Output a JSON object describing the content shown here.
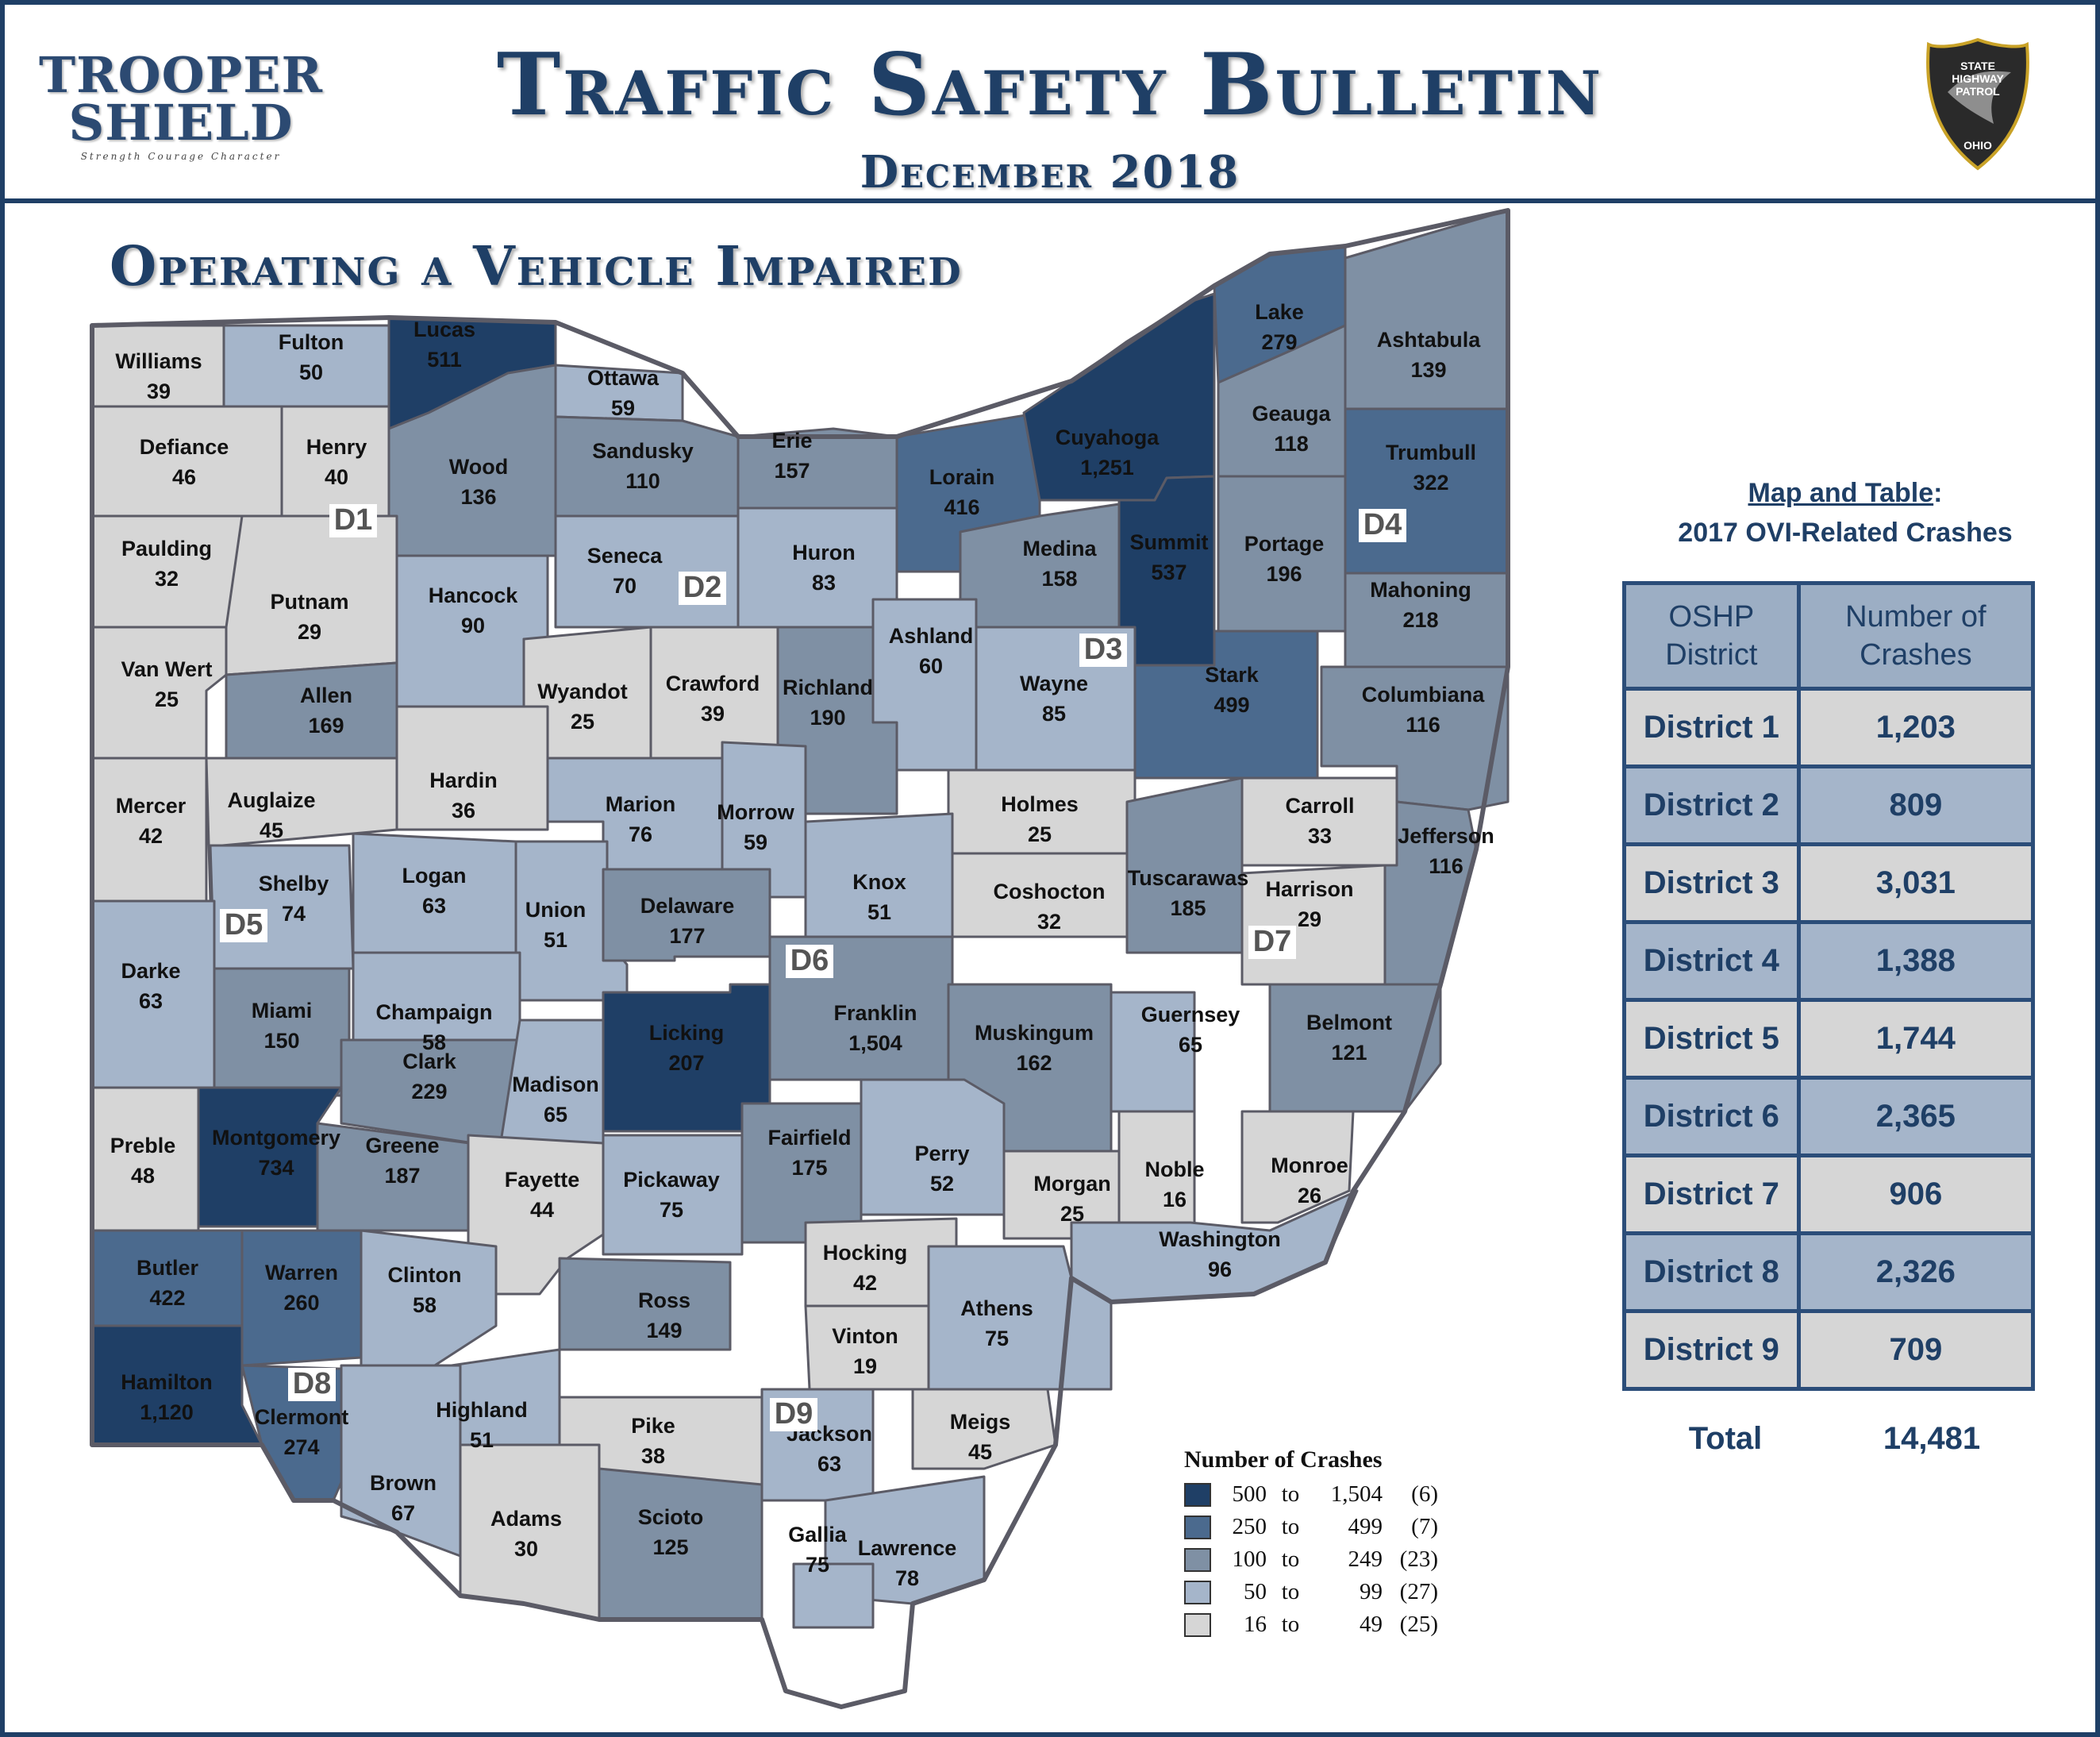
{
  "header": {
    "title": "Traffic Safety Bulletin",
    "subtitle": "December 2018",
    "logo_left": {
      "line1": "TROOPER",
      "line2": "SHIELD",
      "tagline": "Strength Courage Character"
    },
    "logo_right": {
      "line1": "STATE",
      "line2": "HIGHWAY",
      "line3": "PATROL",
      "line4": "OHIO"
    }
  },
  "section_title": "Operating a Vehicle Impaired",
  "colors": {
    "bin1": "#1f3f66",
    "bin2": "#4b6a8e",
    "bin3": "#7f90a4",
    "bin4": "#a5b5ca",
    "bin5": "#d6d6d6",
    "border": "#5b5b66",
    "accent": "#1f3f66"
  },
  "counties": [
    {
      "name": "Williams",
      "value": "39"
    },
    {
      "name": "Fulton",
      "value": "50"
    },
    {
      "name": "Lucas",
      "value": "511"
    },
    {
      "name": "Ottawa",
      "value": "59"
    },
    {
      "name": "Defiance",
      "value": "46"
    },
    {
      "name": "Henry",
      "value": "40"
    },
    {
      "name": "Wood",
      "value": "136"
    },
    {
      "name": "Sandusky",
      "value": "110"
    },
    {
      "name": "Erie",
      "value": "157"
    },
    {
      "name": "Lorain",
      "value": "416"
    },
    {
      "name": "Cuyahoga",
      "value": "1,251"
    },
    {
      "name": "Lake",
      "value": "279"
    },
    {
      "name": "Geauga",
      "value": "118"
    },
    {
      "name": "Ashtabula",
      "value": "139"
    },
    {
      "name": "Trumbull",
      "value": "322"
    },
    {
      "name": "Paulding",
      "value": "32"
    },
    {
      "name": "Putnam",
      "value": "29"
    },
    {
      "name": "Hancock",
      "value": "90"
    },
    {
      "name": "Seneca",
      "value": "70"
    },
    {
      "name": "Huron",
      "value": "83"
    },
    {
      "name": "Medina",
      "value": "158"
    },
    {
      "name": "Summit",
      "value": "537"
    },
    {
      "name": "Portage",
      "value": "196"
    },
    {
      "name": "Van Wert",
      "value": "25"
    },
    {
      "name": "Allen",
      "value": "169"
    },
    {
      "name": "Wyandot",
      "value": "25"
    },
    {
      "name": "Crawford",
      "value": "39"
    },
    {
      "name": "Richland",
      "value": "190"
    },
    {
      "name": "Ashland",
      "value": "60"
    },
    {
      "name": "Wayne",
      "value": "85"
    },
    {
      "name": "Stark",
      "value": "499"
    },
    {
      "name": "Mahoning",
      "value": "218"
    },
    {
      "name": "Columbiana",
      "value": "116"
    },
    {
      "name": "Mercer",
      "value": "42"
    },
    {
      "name": "Auglaize",
      "value": "45"
    },
    {
      "name": "Hardin",
      "value": "36"
    },
    {
      "name": "Marion",
      "value": "76"
    },
    {
      "name": "Morrow",
      "value": "59"
    },
    {
      "name": "Holmes",
      "value": "25"
    },
    {
      "name": "Carroll",
      "value": "33"
    },
    {
      "name": "Jefferson",
      "value": "116"
    },
    {
      "name": "Shelby",
      "value": "74"
    },
    {
      "name": "Logan",
      "value": "63"
    },
    {
      "name": "Union",
      "value": "51"
    },
    {
      "name": "Delaware",
      "value": "177"
    },
    {
      "name": "Knox",
      "value": "51"
    },
    {
      "name": "Coshocton",
      "value": "32"
    },
    {
      "name": "Tuscarawas",
      "value": "185"
    },
    {
      "name": "Harrison",
      "value": "29"
    },
    {
      "name": "Darke",
      "value": "63"
    },
    {
      "name": "Miami",
      "value": "150"
    },
    {
      "name": "Champaign",
      "value": "58"
    },
    {
      "name": "Licking",
      "value": "207"
    },
    {
      "name": "Franklin",
      "value": "1,504"
    },
    {
      "name": "Muskingum",
      "value": "162"
    },
    {
      "name": "Guernsey",
      "value": "65"
    },
    {
      "name": "Belmont",
      "value": "121"
    },
    {
      "name": "Clark",
      "value": "229"
    },
    {
      "name": "Madison",
      "value": "65"
    },
    {
      "name": "Preble",
      "value": "48"
    },
    {
      "name": "Montgomery",
      "value": "734"
    },
    {
      "name": "Greene",
      "value": "187"
    },
    {
      "name": "Fayette",
      "value": "44"
    },
    {
      "name": "Pickaway",
      "value": "75"
    },
    {
      "name": "Fairfield",
      "value": "175"
    },
    {
      "name": "Perry",
      "value": "52"
    },
    {
      "name": "Morgan",
      "value": "25"
    },
    {
      "name": "Noble",
      "value": "16"
    },
    {
      "name": "Monroe",
      "value": "26"
    },
    {
      "name": "Washington",
      "value": "96"
    },
    {
      "name": "Butler",
      "value": "422"
    },
    {
      "name": "Warren",
      "value": "260"
    },
    {
      "name": "Clinton",
      "value": "58"
    },
    {
      "name": "Ross",
      "value": "149"
    },
    {
      "name": "Hocking",
      "value": "42"
    },
    {
      "name": "Vinton",
      "value": "19"
    },
    {
      "name": "Athens",
      "value": "75"
    },
    {
      "name": "Hamilton",
      "value": "1,120"
    },
    {
      "name": "Clermont",
      "value": "274"
    },
    {
      "name": "Highland",
      "value": "51"
    },
    {
      "name": "Pike",
      "value": "38"
    },
    {
      "name": "Jackson",
      "value": "63"
    },
    {
      "name": "Meigs",
      "value": "45"
    },
    {
      "name": "Brown",
      "value": "67"
    },
    {
      "name": "Adams",
      "value": "30"
    },
    {
      "name": "Scioto",
      "value": "125"
    },
    {
      "name": "Gallia",
      "value": "75"
    },
    {
      "name": "Lawrence",
      "value": "78"
    }
  ],
  "district_labels": [
    "D1",
    "D2",
    "D3",
    "D4",
    "D5",
    "D6",
    "D7",
    "D8",
    "D9"
  ],
  "legend": {
    "title": "Number of Crashes",
    "to_word": "to",
    "bins": [
      {
        "low": "500",
        "high": "1,504",
        "count": "(6)"
      },
      {
        "low": "250",
        "high": "499",
        "count": "(7)"
      },
      {
        "low": "100",
        "high": "249",
        "count": "(23)"
      },
      {
        "low": "50",
        "high": "99",
        "count": "(27)"
      },
      {
        "low": "16",
        "high": "49",
        "count": "(25)"
      }
    ]
  },
  "table": {
    "caption_underlined": "Map and Table",
    "caption_colon": ":",
    "caption_line2": "2017 OVI-Related Crashes",
    "header_district": "OSHP District",
    "header_crashes": "Number of Crashes",
    "rows": [
      {
        "district": "District 1",
        "crashes": "1,203"
      },
      {
        "district": "District 2",
        "crashes": "809"
      },
      {
        "district": "District 3",
        "crashes": "3,031"
      },
      {
        "district": "District 4",
        "crashes": "1,388"
      },
      {
        "district": "District 5",
        "crashes": "1,744"
      },
      {
        "district": "District 6",
        "crashes": "2,365"
      },
      {
        "district": "District 7",
        "crashes": "906"
      },
      {
        "district": "District 8",
        "crashes": "2,326"
      },
      {
        "district": "District 9",
        "crashes": "709"
      }
    ],
    "total_label": "Total",
    "total_value": "14,481"
  }
}
